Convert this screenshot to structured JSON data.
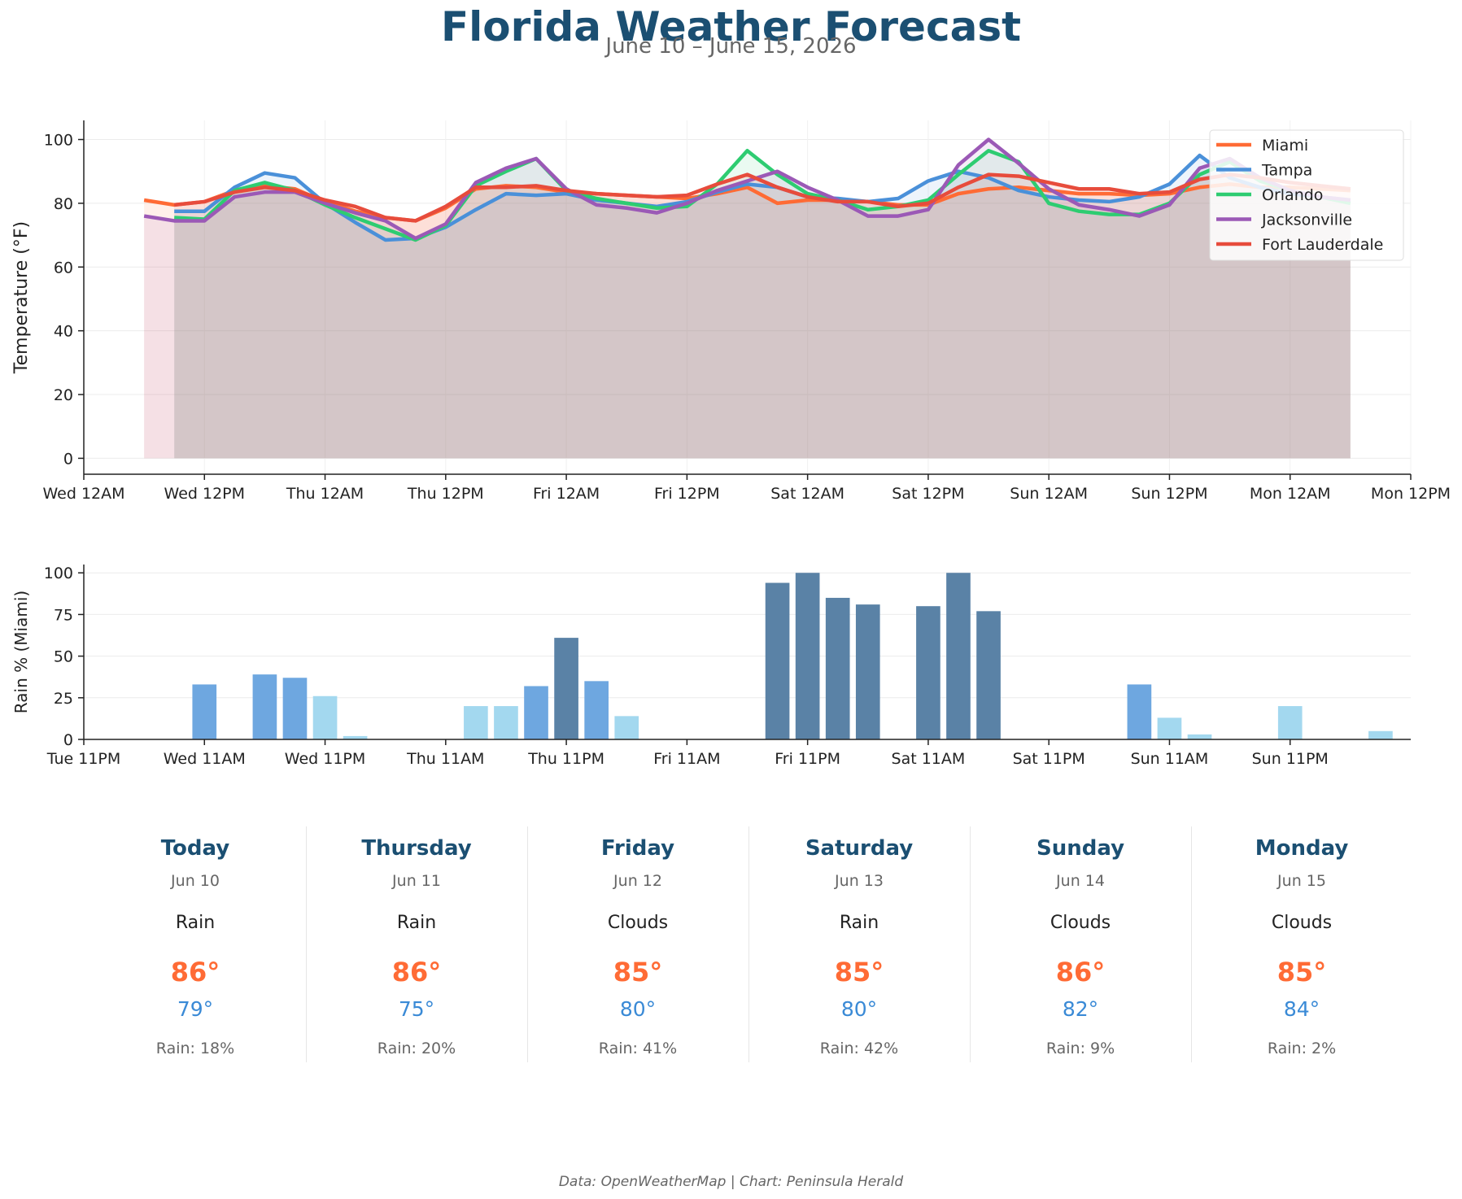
{
  "title": "Florida Weather Forecast",
  "subtitle": "June 10 – June 15, 2026",
  "footer": "Data: OpenWeatherMap | Chart: Peninsula Herald",
  "colors": {
    "Miami": "#ff6b35",
    "Tampa": "#4a90d9",
    "Orlando": "#2ecc71",
    "Jacksonville": "#9b59b6",
    "Fort Lauderdale": "#e74c3c",
    "rain_high": "#5a82a6",
    "rain_mid": "#6ea7e0",
    "rain_low": "#a3d8ef",
    "title": "#1b4f72"
  },
  "chart_data": [
    {
      "type": "line",
      "fill": "area",
      "ylabel": "Temperature (°F)",
      "ylim": [
        -5,
        106
      ],
      "yticks": [
        0,
        20,
        40,
        60,
        80,
        100
      ],
      "x_unit": "hours since Wed Jun 10 12AM",
      "xlim": [
        0,
        132
      ],
      "xticks": [
        "Wed 12AM",
        "Wed 12PM",
        "Thu 12AM",
        "Thu 12PM",
        "Fri 12AM",
        "Fri 12PM",
        "Sat 12AM",
        "Sat 12PM",
        "Sun 12AM",
        "Sun 12PM",
        "Mon 12AM",
        "Mon 12PM"
      ],
      "grid": true,
      "legend": "top-right",
      "series": [
        {
          "name": "Miami",
          "x": [
            6,
            9,
            12,
            15,
            18,
            21,
            24,
            27,
            30,
            33,
            36,
            39,
            42,
            45,
            48,
            51,
            54,
            57,
            60,
            63,
            66,
            69,
            72,
            75,
            78,
            81,
            84,
            87,
            90,
            93,
            96,
            99,
            102,
            105,
            108,
            111,
            114,
            117,
            120,
            123,
            126
          ],
          "values": [
            81,
            79.5,
            80.5,
            84,
            85.5,
            84.5,
            80.5,
            77.5,
            75.5,
            74.5,
            78.5,
            84.5,
            85.5,
            85,
            83.5,
            83,
            82.5,
            82,
            81.5,
            83,
            85,
            80,
            81,
            81,
            80.5,
            79.5,
            79.5,
            83,
            84.5,
            85,
            84,
            83,
            83,
            82.5,
            83,
            85,
            86,
            85,
            85,
            84.5,
            84
          ]
        },
        {
          "name": "Tampa",
          "x": [
            9,
            12,
            15,
            18,
            21,
            24,
            27,
            30,
            33,
            36,
            39,
            42,
            45,
            48,
            51,
            54,
            57,
            60,
            63,
            66,
            69,
            72,
            75,
            78,
            81,
            84,
            87,
            90,
            93,
            96,
            99,
            102,
            105,
            108,
            111,
            114,
            117,
            120,
            123,
            126
          ],
          "values": [
            77.5,
            77.5,
            85,
            89.5,
            88,
            80,
            74,
            68.5,
            69,
            72.5,
            78,
            83,
            82.5,
            83,
            81,
            80,
            79,
            80.5,
            83.5,
            86,
            85,
            82,
            81.5,
            80.5,
            81.5,
            87,
            90,
            88,
            84,
            82,
            81,
            80.5,
            82,
            86,
            95,
            88,
            85,
            83,
            82,
            81
          ]
        },
        {
          "name": "Orlando",
          "x": [
            9,
            12,
            15,
            18,
            21,
            24,
            27,
            30,
            33,
            36,
            39,
            42,
            45,
            48,
            51,
            54,
            57,
            60,
            63,
            66,
            69,
            72,
            75,
            78,
            81,
            84,
            87,
            90,
            93,
            96,
            99,
            102,
            105,
            108,
            111,
            114,
            117,
            120,
            123,
            126
          ],
          "values": [
            75.5,
            75,
            84,
            86.5,
            84,
            79.5,
            75.5,
            72,
            68.5,
            73,
            85.5,
            90,
            94,
            84,
            81.5,
            80,
            78.5,
            79,
            86,
            96.5,
            89,
            83,
            81,
            78,
            79,
            81,
            89,
            96.5,
            93,
            80,
            77.5,
            76.5,
            76.5,
            80,
            89,
            93,
            87,
            84,
            82,
            80
          ]
        },
        {
          "name": "Jacksonville",
          "x": [
            6,
            9,
            12,
            15,
            18,
            21,
            24,
            27,
            30,
            33,
            36,
            39,
            42,
            45,
            48,
            51,
            54,
            57,
            60,
            63,
            66,
            69,
            72,
            75,
            78,
            81,
            84,
            87,
            90,
            93,
            96,
            99,
            102,
            105,
            108,
            111,
            114,
            117,
            120,
            123,
            126
          ],
          "values": [
            76,
            74.5,
            74.5,
            82,
            83.5,
            83.5,
            80,
            77,
            74.5,
            69,
            73.5,
            86.5,
            91,
            94,
            84.5,
            79.5,
            78.5,
            77,
            80,
            84,
            87,
            90,
            85,
            81,
            76,
            76,
            78,
            92,
            100,
            92.5,
            84.5,
            79.5,
            78,
            76,
            79.5,
            91,
            94,
            88,
            84,
            82,
            81
          ]
        },
        {
          "name": "Fort Lauderdale",
          "x": [
            9,
            12,
            15,
            18,
            21,
            24,
            27,
            30,
            33,
            36,
            39,
            42,
            45,
            48,
            51,
            54,
            57,
            60,
            63,
            66,
            69,
            72,
            75,
            78,
            81,
            84,
            87,
            90,
            93,
            96,
            99,
            102,
            105,
            108,
            111,
            114,
            117,
            120,
            123,
            126
          ],
          "values": [
            79.5,
            80.5,
            83.5,
            85,
            84,
            81,
            79,
            75.5,
            74.5,
            79,
            85,
            85,
            85.5,
            84,
            83,
            82.5,
            82,
            82.5,
            86,
            89,
            85,
            82,
            80.5,
            80.5,
            79,
            80,
            85,
            89,
            88.5,
            86.5,
            84.5,
            84.5,
            83,
            83.5,
            87.5,
            89,
            88,
            86.5,
            85.5,
            84.5
          ]
        }
      ]
    },
    {
      "type": "bar",
      "ylabel": "Rain % (Miami)",
      "ylim": [
        0,
        105
      ],
      "yticks": [
        0,
        25,
        50,
        75,
        100
      ],
      "x_unit": "hours since Tue Jun 9 11PM",
      "xlim": [
        0,
        132
      ],
      "xticks": [
        "Tue 11PM",
        "Wed 11AM",
        "Wed 11PM",
        "Thu 11AM",
        "Thu 11PM",
        "Fri 11AM",
        "Fri 11PM",
        "Sat 11AM",
        "Sat 11PM",
        "Sun 11AM",
        "Sun 11PM"
      ],
      "grid": true,
      "bar_width_hours": 2.4,
      "x": [
        3,
        6,
        9,
        12,
        15,
        18,
        21,
        24,
        27,
        30,
        33,
        36,
        39,
        42,
        45,
        48,
        51,
        54,
        57,
        60,
        63,
        66,
        69,
        72,
        75,
        78,
        81,
        84,
        87,
        90,
        93,
        96,
        99,
        102,
        105,
        108,
        111,
        114,
        117,
        120,
        123,
        126,
        129
      ],
      "values": [
        0,
        0,
        0,
        33,
        0,
        39,
        37,
        26,
        2,
        0,
        0,
        0,
        20,
        20,
        32,
        61,
        35,
        14,
        0,
        0,
        0,
        0,
        94,
        100,
        85,
        81,
        0,
        80,
        100,
        77,
        0,
        0,
        0,
        0,
        33,
        13,
        3,
        0,
        0,
        20,
        0,
        0,
        5
      ]
    }
  ],
  "days": [
    {
      "name": "Today",
      "date": "Jun 10",
      "cond": "Rain",
      "high": "86°",
      "low": "79°",
      "rain": "Rain: 18%"
    },
    {
      "name": "Thursday",
      "date": "Jun 11",
      "cond": "Rain",
      "high": "86°",
      "low": "75°",
      "rain": "Rain: 20%"
    },
    {
      "name": "Friday",
      "date": "Jun 12",
      "cond": "Clouds",
      "high": "85°",
      "low": "80°",
      "rain": "Rain: 41%"
    },
    {
      "name": "Saturday",
      "date": "Jun 13",
      "cond": "Rain",
      "high": "85°",
      "low": "80°",
      "rain": "Rain: 42%"
    },
    {
      "name": "Sunday",
      "date": "Jun 14",
      "cond": "Clouds",
      "high": "86°",
      "low": "82°",
      "rain": "Rain: 9%"
    },
    {
      "name": "Monday",
      "date": "Jun 15",
      "cond": "Clouds",
      "high": "85°",
      "low": "84°",
      "rain": "Rain: 2%"
    }
  ]
}
